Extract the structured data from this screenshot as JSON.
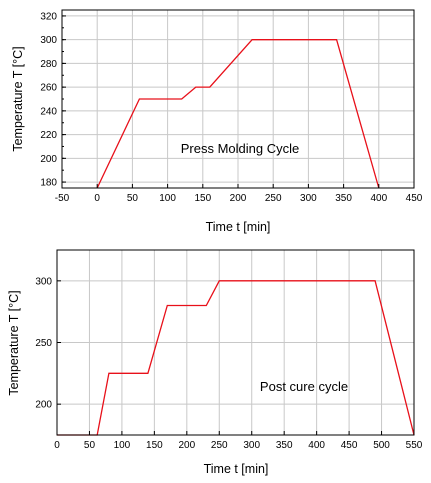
{
  "chart_data": [
    {
      "type": "line",
      "annotation": "Press Molding Cycle",
      "xlabel": "Time t [min]",
      "ylabel": "Temperature T [°C]",
      "xlim": [
        -50,
        450
      ],
      "ylim": [
        175,
        325
      ],
      "xticks": [
        -50,
        0,
        50,
        100,
        150,
        200,
        250,
        300,
        350,
        400,
        450
      ],
      "yticks": [
        180,
        200,
        220,
        240,
        260,
        280,
        300,
        320
      ],
      "grid": true,
      "line_color": "#e8101a",
      "series": [
        {
          "x": [
            0,
            60,
            120,
            140,
            160,
            220,
            340,
            400
          ],
          "y": [
            175,
            250,
            250,
            260,
            260,
            300,
            300,
            175
          ]
        }
      ]
    },
    {
      "type": "line",
      "annotation": "Post cure cycle",
      "xlabel": "Time t [min]",
      "ylabel": "Temperature T [°C]",
      "xlim": [
        0,
        550
      ],
      "ylim": [
        175,
        325
      ],
      "xticks": [
        0,
        50,
        100,
        150,
        200,
        250,
        300,
        350,
        400,
        450,
        500,
        550
      ],
      "yticks": [
        200,
        250,
        300
      ],
      "grid": true,
      "line_color": "#e8101a",
      "series": [
        {
          "x": [
            0,
            62,
            80,
            140,
            170,
            230,
            250,
            490,
            550
          ],
          "y": [
            175,
            175,
            225,
            225,
            280,
            280,
            300,
            300,
            175
          ]
        }
      ]
    }
  ]
}
